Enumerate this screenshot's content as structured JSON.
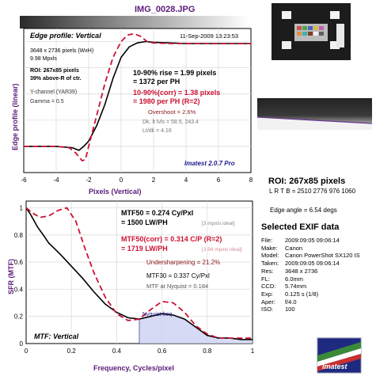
{
  "file_title": "IMG_0028.JPG",
  "colors": {
    "purple": "#5a1a7a",
    "red": "#cc1133",
    "blue": "#1a1a8a",
    "fill": "#c8cdf0",
    "dark_red": "#8a1a1a"
  },
  "top_panel": {
    "title": "Edge profile: Vertical",
    "datetime": "11-Sep-2009 13:23:53",
    "info_lines": [
      "3648 x 2736 pixels (WxH)",
      "9.98 Mpxls"
    ],
    "roi_lines": [
      "ROI: 267x85 pixels",
      "39% above-R of ctr."
    ],
    "channel_lines": [
      "Y-channel  (YAR39)",
      "Gamma = 0.5"
    ],
    "rise_lines": [
      "10-90% rise = 1.99 pixels",
      "= 1372 per PH"
    ],
    "corr_lines": [
      "10-90%(corr) = 1.38 pixels",
      "= 1980 per PH  (R=2)"
    ],
    "stat_lines": [
      "Overshoot = 2.6%",
      "Dk, lt lvls = 58.5, 243.4",
      "Lt/dk = 4.16"
    ],
    "version": "Imatest 2.0.7 Pro"
  },
  "bottom_panel": {
    "title": "MTF: Vertical",
    "mtf50_lines": [
      "MTF50 = 0.274 Cy/Pxl",
      "= 1500 LW/PH"
    ],
    "mtf50_ideal": "[3 mpxls ideal]",
    "mtf50c_lines": [
      "MTF50(corr) = 0.314 C/P  (R=2)",
      "= 1719 LW/PH"
    ],
    "mtf50c_ideal": "[3.94 mpxls ideal]",
    "undersharpening": "Undersharpening = 21.2%",
    "mtf30": "MTF30 = 0.337 Cy/Pxl",
    "mtf_nyq": "MTF at Nyquist = 0.184",
    "nyquist_label": "Nyquist freq."
  },
  "right": {
    "roi_title": "ROI: 267x85 pixels",
    "lrtb": "L R T B = 2510 2776  976 1060",
    "edge_angle": "Edge angle = 6.54 degs",
    "exif_title": "Selected EXIF data",
    "exif": [
      {
        "k": "File:",
        "v": "2009:09:05 09:06:14"
      },
      {
        "k": "Make:",
        "v": "Canon"
      },
      {
        "k": "Model:",
        "v": "Canon PowerShot SX120 IS"
      },
      {
        "k": "Taken:",
        "v": "2009:09:05 09:06:14"
      },
      {
        "k": "Res:",
        "v": "3648 x 2736"
      },
      {
        "k": "FL:",
        "v": "6.0mm"
      },
      {
        "k": "CCD:",
        "v": "5.74mm"
      },
      {
        "k": "Exp:",
        "v": "0.125 s  (1/8)"
      },
      {
        "k": "Aper:",
        "v": "f/4.0"
      },
      {
        "k": "ISO:",
        "v": "100"
      }
    ],
    "logo": "Imatest"
  },
  "chart_data": [
    {
      "type": "line",
      "title": "Edge profile: Vertical",
      "xlabel": "Pixels (Vertical)",
      "ylabel": "Edge profile (linear)",
      "xlim": [
        -6,
        8
      ],
      "ylim": [
        0,
        1.1
      ],
      "grid": true,
      "xticks": [
        "-6",
        "-4",
        "-2",
        "0",
        "2",
        "4",
        "6",
        "8"
      ],
      "series": [
        {
          "style": "solid",
          "x": [
            -6,
            -5,
            -4,
            -3,
            -2.6,
            -2.3,
            -2,
            -1.5,
            -1,
            -0.5,
            0,
            0.5,
            1,
            1.5,
            2,
            3,
            4,
            5,
            6,
            7,
            8
          ],
          "y": [
            0.2,
            0.2,
            0.2,
            0.19,
            0.17,
            0.2,
            0.24,
            0.36,
            0.52,
            0.72,
            0.88,
            0.96,
            0.99,
            1.0,
            0.995,
            0.99,
            0.985,
            0.985,
            0.985,
            0.985,
            0.985
          ]
        },
        {
          "style": "dashed",
          "x": [
            -6,
            -5,
            -4,
            -3.2,
            -2.8,
            -2.4,
            -2.2,
            -2,
            -1.5,
            -1,
            -0.5,
            0,
            0.4,
            0.8,
            1.2,
            1.6,
            2,
            3,
            4,
            5,
            6,
            7,
            8
          ],
          "y": [
            0.2,
            0.2,
            0.2,
            0.19,
            0.15,
            0.09,
            0.1,
            0.2,
            0.44,
            0.68,
            0.88,
            1.0,
            1.05,
            1.06,
            1.04,
            1.0,
            0.99,
            0.985,
            0.985,
            0.985,
            0.985,
            0.985,
            0.985
          ]
        }
      ]
    },
    {
      "type": "line",
      "title": "MTF: Vertical",
      "xlabel": "Frequency, Cycles/pixel",
      "ylabel": "SFR (MTF)",
      "xlim": [
        0,
        1
      ],
      "ylim": [
        0,
        1.05
      ],
      "grid": true,
      "xticks": [
        "0",
        "0.2",
        "0.4",
        "0.6",
        "0.8",
        "1"
      ],
      "yticks": [
        "0",
        "0.2",
        "0.4",
        "0.6",
        "0.8",
        "1"
      ],
      "series": [
        {
          "style": "solid",
          "x": [
            0,
            0.02,
            0.05,
            0.08,
            0.1,
            0.15,
            0.2,
            0.25,
            0.3,
            0.35,
            0.4,
            0.45,
            0.5,
            0.55,
            0.6,
            0.65,
            0.7,
            0.75,
            0.8,
            0.85,
            0.9,
            0.95,
            1.0
          ],
          "y": [
            1.0,
            0.95,
            0.86,
            0.79,
            0.74,
            0.66,
            0.57,
            0.48,
            0.38,
            0.29,
            0.23,
            0.19,
            0.18,
            0.2,
            0.22,
            0.21,
            0.18,
            0.12,
            0.06,
            0.04,
            0.04,
            0.03,
            0.03
          ]
        },
        {
          "style": "dashed",
          "x": [
            0,
            0.03,
            0.06,
            0.1,
            0.14,
            0.18,
            0.22,
            0.26,
            0.3,
            0.35,
            0.4,
            0.45,
            0.5,
            0.55,
            0.6,
            0.65,
            0.7,
            0.75,
            0.8,
            0.85,
            0.9,
            0.95,
            1.0
          ],
          "y": [
            1.0,
            0.96,
            0.93,
            0.94,
            0.98,
            1.0,
            0.9,
            0.7,
            0.52,
            0.34,
            0.22,
            0.17,
            0.18,
            0.25,
            0.31,
            0.3,
            0.23,
            0.13,
            0.07,
            0.04,
            0.04,
            0.04,
            0.04
          ]
        }
      ]
    }
  ]
}
